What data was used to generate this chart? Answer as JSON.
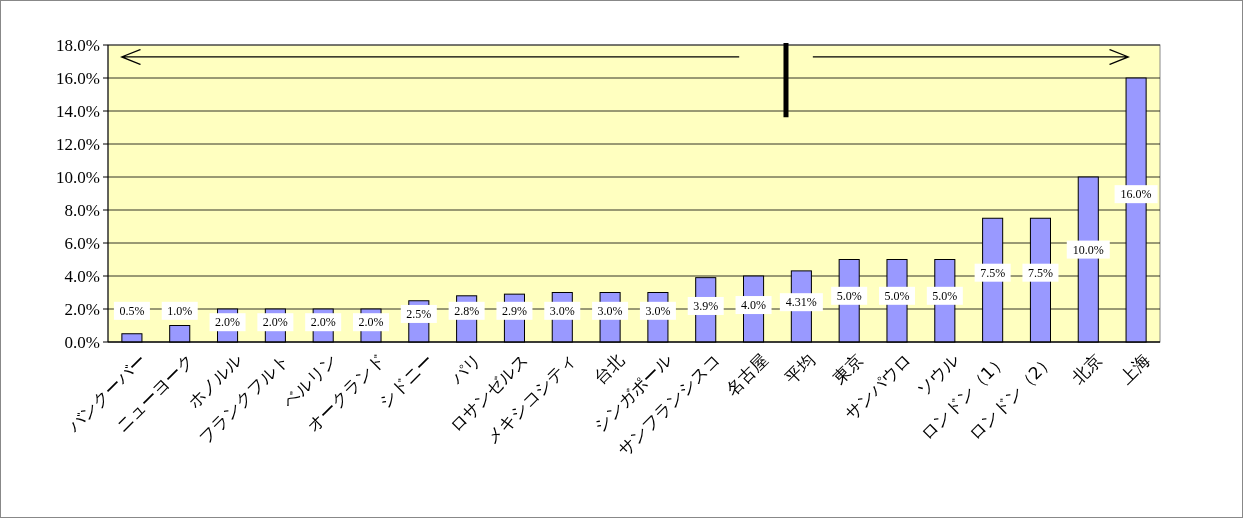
{
  "chart_data": {
    "type": "bar",
    "categories": [
      "バンクーバー",
      "ニューヨーク",
      "ホノルル",
      "フランクフルト",
      "ベルリン",
      "オークランド",
      "シドニー",
      "パリ",
      "ロサンゼルス",
      "メキシコシティ",
      "台北",
      "シンガポール",
      "サンフランシスコ",
      "名古屋",
      "平均",
      "東京",
      "サンパウロ",
      "ソウル",
      "ロンドン（1）",
      "ロンドン（2）",
      "北京",
      "上海"
    ],
    "values": [
      0.5,
      1.0,
      2.0,
      2.0,
      2.0,
      2.0,
      2.5,
      2.8,
      2.9,
      3.0,
      3.0,
      3.0,
      3.9,
      4.0,
      4.31,
      5.0,
      5.0,
      5.0,
      7.5,
      7.5,
      10.0,
      16.0
    ],
    "value_labels": [
      "0.5%",
      "1.0%",
      "2.0%",
      "2.0%",
      "2.0%",
      "2.0%",
      "2.5%",
      "2.8%",
      "2.9%",
      "3.0%",
      "3.0%",
      "3.0%",
      "3.9%",
      "4.0%",
      "4.31%",
      "5.0%",
      "5.0%",
      "5.0%",
      "7.5%",
      "7.5%",
      "10.0%",
      "16.0%"
    ],
    "color": "#9999ff",
    "ylim": [
      0,
      18
    ],
    "yticks": [
      {
        "value": 0,
        "label": "0.0%"
      },
      {
        "value": 2,
        "label": "2.0%"
      },
      {
        "value": 4,
        "label": "4.0%"
      },
      {
        "value": 6,
        "label": "6.0%"
      },
      {
        "value": 8,
        "label": "8.0%"
      },
      {
        "value": 10,
        "label": "10.0%"
      },
      {
        "value": 12,
        "label": "12.0%"
      },
      {
        "value": 14,
        "label": "14.0%"
      },
      {
        "value": 16,
        "label": "16.0%"
      },
      {
        "value": 18,
        "label": "18.0%"
      }
    ],
    "grid": "y"
  }
}
